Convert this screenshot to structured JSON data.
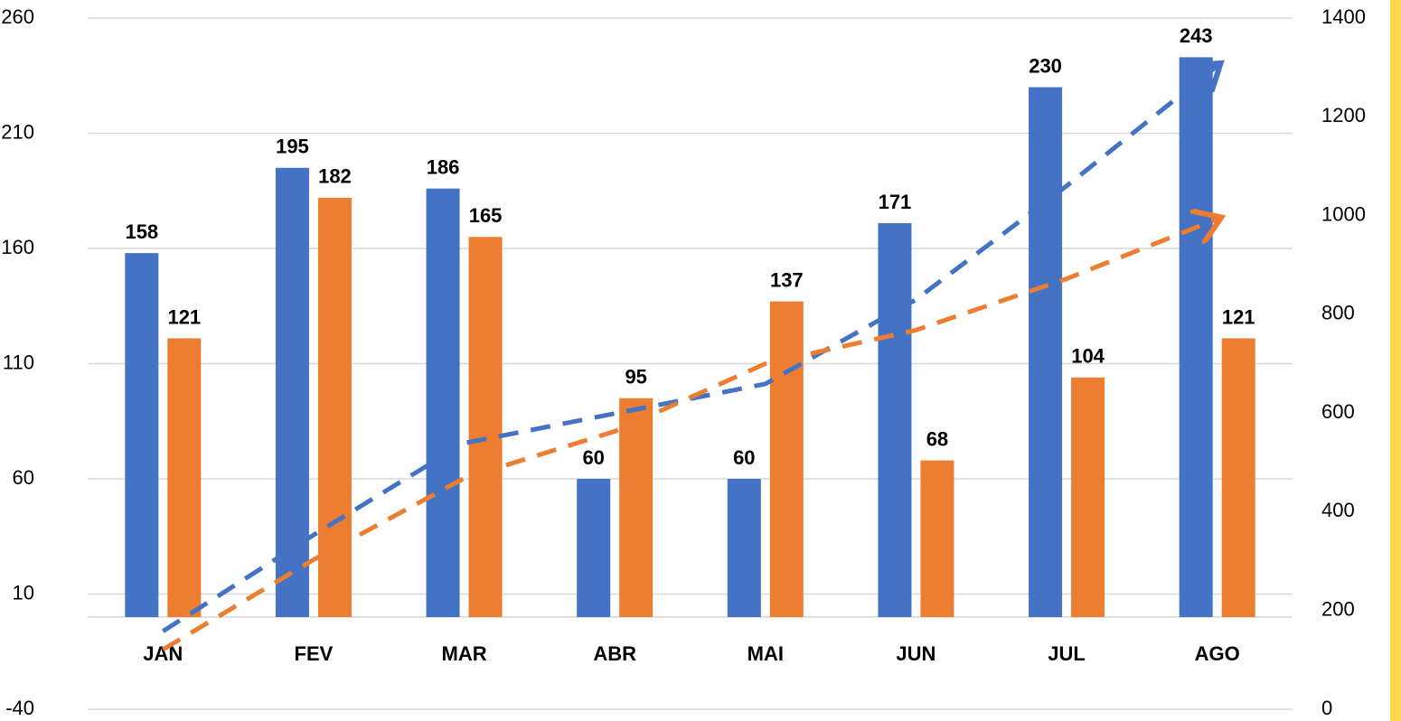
{
  "chart_data": {
    "type": "bar",
    "categories": [
      "JAN",
      "FEV",
      "MAR",
      "ABR",
      "MAI",
      "JUN",
      "JUL",
      "AGO"
    ],
    "series": [
      {
        "color": "#4472C4",
        "values": [
          158,
          195,
          186,
          60,
          60,
          171,
          230,
          243
        ]
      },
      {
        "color": "#ED7D31",
        "values": [
          121,
          182,
          165,
          95,
          137,
          68,
          104,
          121
        ]
      },
      {
        "color": "#4472C4",
        "axis": "y2",
        "type": "line",
        "dashed": true,
        "values": [
          158,
          353,
          539,
          599,
          659,
          830,
          1060,
          1303
        ]
      },
      {
        "color": "#ED7D31",
        "axis": "y2",
        "type": "line",
        "dashed": true,
        "values": [
          121,
          303,
          468,
          563,
          700,
          768,
          872,
          993
        ]
      }
    ],
    "ylim": [
      -40,
      260
    ],
    "yticks": [
      -40,
      10,
      60,
      110,
      160,
      210,
      260
    ],
    "y2lim": [
      0,
      1400
    ],
    "y2ticks": [
      0,
      200,
      400,
      600,
      800,
      1000,
      1200,
      1400
    ],
    "grid": true,
    "data_labels": true
  }
}
